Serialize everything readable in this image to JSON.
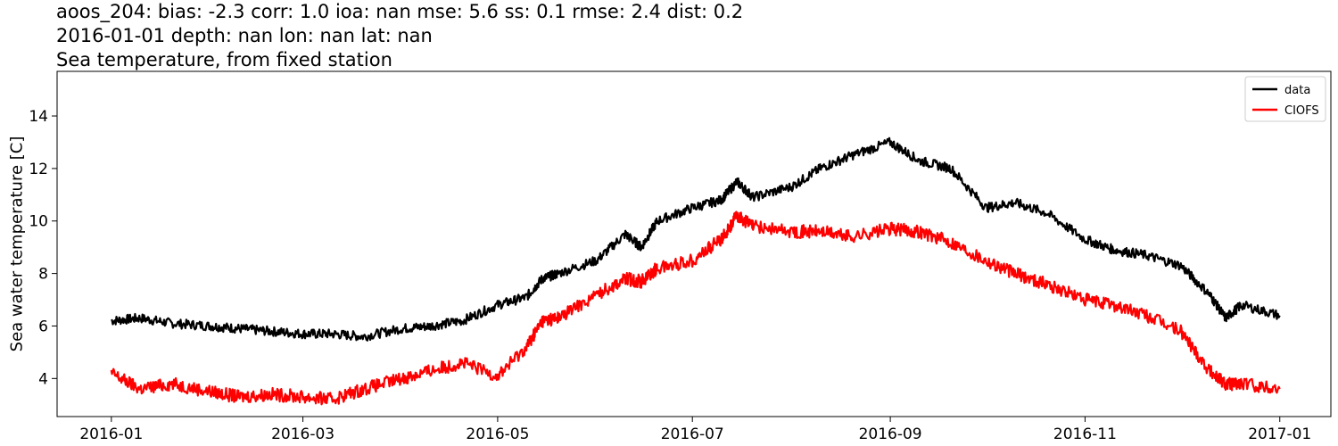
{
  "chart_data": {
    "type": "line",
    "title_lines": [
      "aoos_204: bias: -2.3  corr: 1.0  ioa: nan  mse: 5.6  ss: 0.1  rmse: 2.4  dist: 0.2",
      "2016-01-01 depth: nan lon: nan lat: nan",
      "Sea temperature, from fixed station"
    ],
    "xlabel": "",
    "ylabel": "Sea water temperature [C]",
    "xlim": [
      "2015-12-15",
      "2017-01-17"
    ],
    "ylim": [
      2.55,
      15.7
    ],
    "x_ticks": [
      "2016-01-01",
      "2016-03-01",
      "2016-05-01",
      "2016-07-01",
      "2016-09-01",
      "2016-11-01",
      "2017-01-01"
    ],
    "x_tick_labels": [
      "2016-01",
      "2016-03",
      "2016-05",
      "2016-07",
      "2016-09",
      "2016-11",
      "2017-01"
    ],
    "y_ticks": [
      4,
      6,
      8,
      10,
      12,
      14
    ],
    "grid": false,
    "legend_position": "top-right",
    "series": [
      {
        "name": "data",
        "color": "#000000",
        "x": [
          "2016-01-01",
          "2016-01-10",
          "2016-01-20",
          "2016-02-01",
          "2016-02-10",
          "2016-02-20",
          "2016-03-01",
          "2016-03-10",
          "2016-03-20",
          "2016-04-01",
          "2016-04-10",
          "2016-04-20",
          "2016-05-01",
          "2016-05-10",
          "2016-05-15",
          "2016-05-20",
          "2016-06-01",
          "2016-06-10",
          "2016-06-15",
          "2016-06-20",
          "2016-07-01",
          "2016-07-10",
          "2016-07-15",
          "2016-07-20",
          "2016-08-01",
          "2016-08-10",
          "2016-08-20",
          "2016-09-01",
          "2016-09-10",
          "2016-09-20",
          "2016-10-01",
          "2016-10-10",
          "2016-10-20",
          "2016-11-01",
          "2016-11-10",
          "2016-11-20",
          "2016-12-01",
          "2016-12-10",
          "2016-12-15",
          "2016-12-20",
          "2017-01-01"
        ],
        "y": [
          6.2,
          6.3,
          6.1,
          6.0,
          5.9,
          5.8,
          5.7,
          5.7,
          5.6,
          5.9,
          6.0,
          6.2,
          6.8,
          7.1,
          7.8,
          8.0,
          8.5,
          9.5,
          9.0,
          10.0,
          10.5,
          10.8,
          11.5,
          10.9,
          11.3,
          12.0,
          12.5,
          13.0,
          12.3,
          12.0,
          10.5,
          10.7,
          10.3,
          9.3,
          8.9,
          8.7,
          8.3,
          7.2,
          6.3,
          6.8,
          6.4
        ]
      },
      {
        "name": "CIOFS",
        "color": "#ff0000",
        "x": [
          "2016-01-01",
          "2016-01-10",
          "2016-01-20",
          "2016-02-01",
          "2016-02-10",
          "2016-02-20",
          "2016-03-01",
          "2016-03-10",
          "2016-03-20",
          "2016-04-01",
          "2016-04-10",
          "2016-04-20",
          "2016-05-01",
          "2016-05-10",
          "2016-05-15",
          "2016-05-20",
          "2016-06-01",
          "2016-06-10",
          "2016-06-15",
          "2016-06-20",
          "2016-07-01",
          "2016-07-10",
          "2016-07-15",
          "2016-07-20",
          "2016-08-01",
          "2016-08-10",
          "2016-08-20",
          "2016-09-01",
          "2016-09-10",
          "2016-09-20",
          "2016-10-01",
          "2016-10-10",
          "2016-10-20",
          "2016-11-01",
          "2016-11-10",
          "2016-11-20",
          "2016-12-01",
          "2016-12-10",
          "2016-12-15",
          "2016-12-20",
          "2017-01-01"
        ],
        "y": [
          4.2,
          3.6,
          3.8,
          3.5,
          3.3,
          3.4,
          3.3,
          3.2,
          3.6,
          4.0,
          4.3,
          4.6,
          4.1,
          5.2,
          6.2,
          6.3,
          7.2,
          7.8,
          7.7,
          8.2,
          8.5,
          9.3,
          10.2,
          9.8,
          9.6,
          9.6,
          9.4,
          9.7,
          9.6,
          9.2,
          8.5,
          8.0,
          7.6,
          7.0,
          6.8,
          6.4,
          5.8,
          4.3,
          3.8,
          3.8,
          3.6
        ]
      }
    ]
  }
}
